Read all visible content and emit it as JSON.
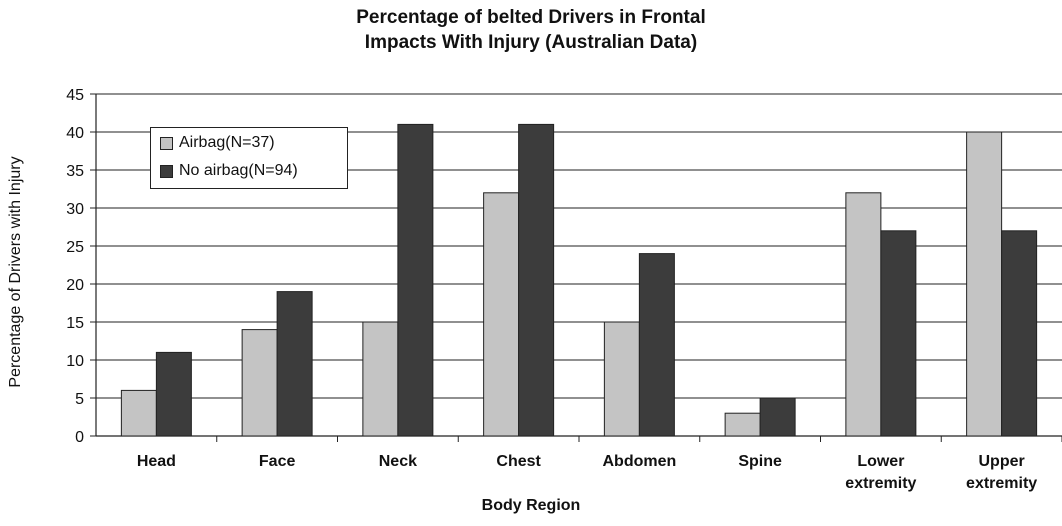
{
  "chart_data": {
    "type": "bar",
    "title": [
      "Percentage of belted Drivers in Frontal",
      "Impacts With Injury (Australian Data)"
    ],
    "xlabel": "Body Region",
    "ylabel": "Percentage of Drivers with Injury",
    "ylim": [
      0,
      45
    ],
    "yticks": [
      0,
      5,
      10,
      15,
      20,
      25,
      30,
      35,
      40,
      45
    ],
    "grid": true,
    "legend": "top-left",
    "categories": [
      [
        "Head"
      ],
      [
        "Face"
      ],
      [
        "Neck"
      ],
      [
        "Chest"
      ],
      [
        "Abdomen"
      ],
      [
        "Spine"
      ],
      [
        "Lower",
        "extremity"
      ],
      [
        "Upper",
        "extremity"
      ]
    ],
    "series": [
      {
        "name": "Airbag(N=37)",
        "color": "#c4c4c4",
        "values": [
          6,
          14,
          15,
          32,
          15,
          3,
          32,
          40
        ]
      },
      {
        "name": "No airbag(N=94)",
        "color": "#3c3c3c",
        "values": [
          11,
          19,
          41,
          41,
          24,
          5,
          27,
          27
        ]
      }
    ]
  }
}
